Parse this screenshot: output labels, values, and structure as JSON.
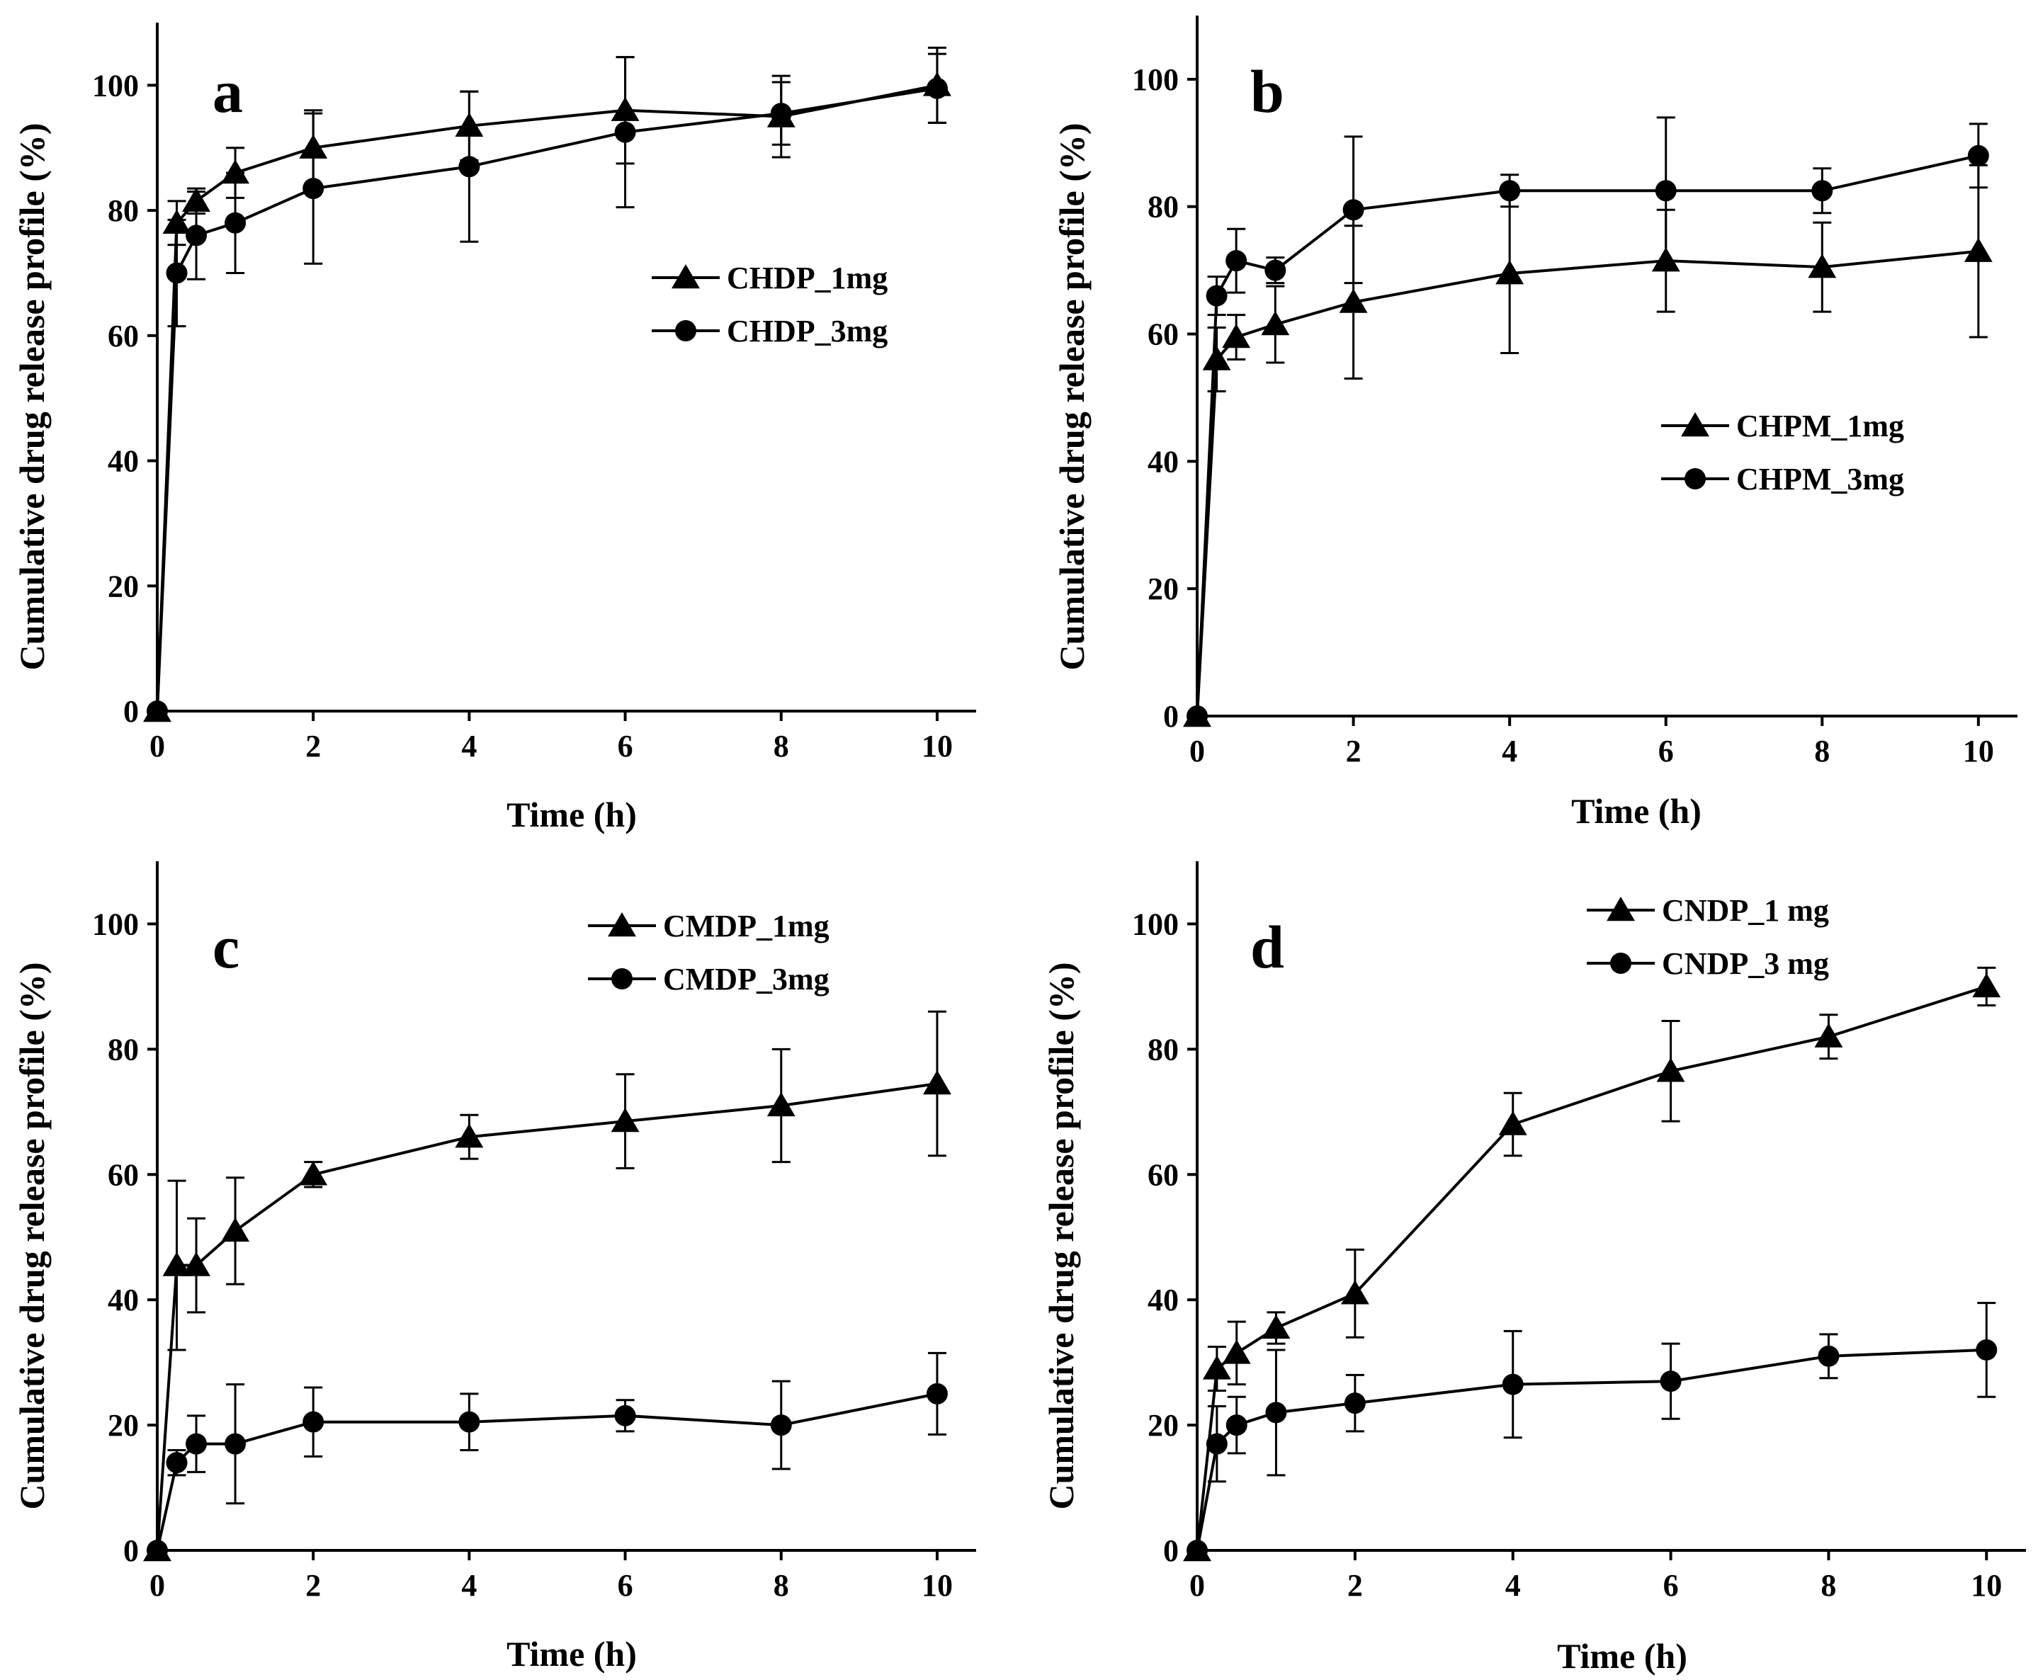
{
  "chart_data": [
    {
      "panel": "a",
      "type": "line",
      "xlabel": "Time (h)",
      "ylabel": "Cumulative drug release profile (%)",
      "xlim": [
        0,
        10.5
      ],
      "ylim": [
        0,
        110
      ],
      "xticks": [
        0,
        2,
        4,
        6,
        8,
        10
      ],
      "yticks": [
        0,
        20,
        40,
        60,
        80,
        100
      ],
      "legend_position": "middle-right",
      "series": [
        {
          "name": "CHDP_1mg",
          "marker": "triangle",
          "x": [
            0,
            0.25,
            0.5,
            1,
            2,
            4,
            6,
            8,
            10
          ],
          "y": [
            0,
            78,
            81.5,
            86,
            90,
            93.5,
            96,
            95,
            100
          ],
          "err": [
            0,
            3.5,
            2,
            4,
            6,
            5.5,
            8.5,
            6.5,
            6
          ]
        },
        {
          "name": "CHDP_3mg",
          "marker": "circle",
          "x": [
            0,
            0.25,
            0.5,
            1,
            2,
            4,
            6,
            8,
            10
          ],
          "y": [
            0,
            70,
            76,
            78,
            83.5,
            87,
            92.5,
            95.5,
            99.5
          ],
          "err": [
            0,
            8.5,
            7,
            8,
            12,
            12,
            12,
            5,
            5.5
          ]
        }
      ]
    },
    {
      "panel": "b",
      "type": "line",
      "xlabel": "Time (h)",
      "ylabel": "Cumulative drug release profile (%)",
      "xlim": [
        0,
        10.5
      ],
      "ylim": [
        0,
        110
      ],
      "xticks": [
        0,
        2,
        4,
        6,
        8,
        10
      ],
      "yticks": [
        0,
        20,
        40,
        60,
        80,
        100
      ],
      "legend_position": "middle-right",
      "series": [
        {
          "name": "CHPM_1mg",
          "marker": "triangle",
          "x": [
            0,
            0.25,
            0.5,
            1,
            2,
            4,
            6,
            8,
            10
          ],
          "y": [
            0,
            56,
            59.5,
            61.5,
            65,
            69.5,
            71.5,
            70.5,
            73
          ],
          "err": [
            0,
            5,
            3.5,
            6,
            12,
            12.5,
            8,
            7,
            13.5
          ]
        },
        {
          "name": "CHPM_3mg",
          "marker": "circle",
          "x": [
            0,
            0.25,
            0.5,
            1,
            2,
            4,
            6,
            8,
            10
          ],
          "y": [
            0,
            66,
            71.5,
            70,
            79.5,
            82.5,
            82.5,
            82.5,
            88
          ],
          "err": [
            0,
            3,
            5,
            2,
            11.5,
            2.5,
            11.5,
            3.5,
            5
          ]
        }
      ]
    },
    {
      "panel": "c",
      "type": "line",
      "xlabel": "Time (h)",
      "ylabel": "Cumulative drug release profile (%)",
      "xlim": [
        0,
        10.5
      ],
      "ylim": [
        0,
        110
      ],
      "xticks": [
        0,
        2,
        4,
        6,
        8,
        10
      ],
      "yticks": [
        0,
        20,
        40,
        60,
        80,
        100
      ],
      "legend_position": "top-right",
      "series": [
        {
          "name": "CMDP_1mg",
          "marker": "triangle",
          "x": [
            0,
            0.25,
            0.5,
            1,
            2,
            4,
            6,
            8,
            10
          ],
          "y": [
            0,
            45.5,
            45.5,
            51,
            60,
            66,
            68.5,
            71,
            74.5
          ],
          "err": [
            0,
            13.5,
            7.5,
            8.5,
            2,
            3.5,
            7.5,
            9,
            11.5
          ]
        },
        {
          "name": "CMDP_3mg",
          "marker": "circle",
          "x": [
            0,
            0.25,
            0.5,
            1,
            2,
            4,
            6,
            8,
            10
          ],
          "y": [
            0,
            14,
            17,
            17,
            20.5,
            20.5,
            21.5,
            20,
            25
          ],
          "err": [
            0,
            2,
            4.5,
            9.5,
            5.5,
            4.5,
            2.5,
            7,
            6.5
          ]
        }
      ]
    },
    {
      "panel": "d",
      "type": "line",
      "xlabel": "Time (h)",
      "ylabel": "Cumulative drug release profile (%)",
      "xlim": [
        0,
        10.5
      ],
      "ylim": [
        0,
        110
      ],
      "xticks": [
        0,
        2,
        4,
        6,
        8,
        10
      ],
      "yticks": [
        0,
        20,
        40,
        60,
        80,
        100
      ],
      "legend_position": "top-right",
      "series": [
        {
          "name": "CNDP_1 mg",
          "marker": "triangle",
          "x": [
            0,
            0.25,
            0.5,
            1,
            2,
            4,
            6,
            8,
            10
          ],
          "y": [
            0,
            29,
            31.5,
            35.5,
            41,
            68,
            76.5,
            82,
            90
          ],
          "err": [
            0,
            3.5,
            5,
            2.5,
            7,
            5,
            8,
            3.5,
            3
          ]
        },
        {
          "name": "CNDP_3 mg",
          "marker": "circle",
          "x": [
            0,
            0.25,
            0.5,
            1,
            2,
            4,
            6,
            8,
            10
          ],
          "y": [
            0,
            17,
            20,
            22,
            23.5,
            26.5,
            27,
            31,
            32
          ],
          "err": [
            0,
            6,
            4.5,
            10,
            4.5,
            8.5,
            6,
            3.5,
            7.5
          ]
        }
      ]
    }
  ]
}
